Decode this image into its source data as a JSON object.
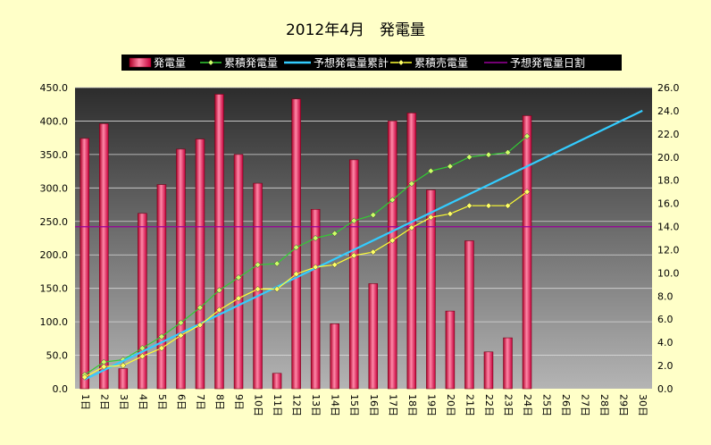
{
  "chart_data": {
    "type": "bar",
    "title": "2012年4月　発電量",
    "categories": [
      "1日",
      "2日",
      "3日",
      "4日",
      "5日",
      "6日",
      "7日",
      "8日",
      "9日",
      "10日",
      "11日",
      "12日",
      "13日",
      "14日",
      "15日",
      "16日",
      "17日",
      "18日",
      "19日",
      "20日",
      "21日",
      "22日",
      "23日",
      "24日",
      "25日",
      "26日",
      "27日",
      "28日",
      "29日",
      "30日"
    ],
    "left_axis": {
      "ylim": [
        0,
        450
      ],
      "ticks": [
        "0.0",
        "50.0",
        "100.0",
        "150.0",
        "200.0",
        "250.0",
        "300.0",
        "350.0",
        "400.0",
        "450.0"
      ]
    },
    "right_axis": {
      "ylim": [
        0,
        26
      ],
      "ticks": [
        "0.0",
        "2.0",
        "4.0",
        "6.0",
        "8.0",
        "10.0",
        "12.0",
        "14.0",
        "16.0",
        "18.0",
        "20.0",
        "22.0",
        "24.0",
        "26.0"
      ]
    },
    "grid": true,
    "legend_position": "top",
    "series": [
      {
        "name": "発電量",
        "kind": "bar",
        "axis": "left",
        "color": "#ff2a55",
        "values": [
          374,
          396,
          30,
          262,
          305,
          358,
          373,
          440,
          350,
          307,
          23,
          433,
          268,
          97,
          342,
          157,
          400,
          412,
          297,
          116,
          221,
          55,
          76,
          408,
          null,
          null,
          null,
          null,
          null,
          null
        ]
      },
      {
        "name": "累積発電量",
        "kind": "line",
        "axis": "right",
        "color": "#33cc33",
        "marker": "diamond",
        "marker_color": "#ccff66",
        "values": [
          1.2,
          2.3,
          2.5,
          3.5,
          4.5,
          5.7,
          7.0,
          8.5,
          9.6,
          10.7,
          10.8,
          12.2,
          13.0,
          13.4,
          14.5,
          15.0,
          16.3,
          17.7,
          18.8,
          19.2,
          20.0,
          20.2,
          20.4,
          21.8,
          null,
          null,
          null,
          null,
          null,
          null
        ]
      },
      {
        "name": "予想発電量累計",
        "kind": "line",
        "axis": "right",
        "color": "#33ccff",
        "values": [
          0.8,
          1.6,
          2.4,
          3.2,
          4.0,
          4.8,
          5.6,
          6.4,
          7.2,
          8.0,
          8.8,
          9.6,
          10.4,
          11.2,
          12.0,
          12.8,
          13.6,
          14.4,
          15.2,
          16.0,
          16.8,
          17.6,
          18.4,
          19.2,
          20.0,
          20.8,
          21.6,
          22.4,
          23.2,
          24.0
        ]
      },
      {
        "name": "累積売電量",
        "kind": "line",
        "axis": "right",
        "color": "#ffff33",
        "marker": "diamond",
        "marker_color": "#ffff66",
        "values": [
          1.0,
          1.9,
          2.0,
          2.8,
          3.5,
          4.6,
          5.5,
          6.8,
          7.8,
          8.6,
          8.6,
          9.9,
          10.5,
          10.7,
          11.5,
          11.8,
          12.8,
          13.9,
          14.8,
          15.1,
          15.8,
          15.8,
          15.8,
          17.0,
          null,
          null,
          null,
          null,
          null,
          null
        ]
      },
      {
        "name": "予想発電量日割",
        "kind": "hline",
        "axis": "left",
        "color": "#990099",
        "value": 242
      }
    ]
  }
}
